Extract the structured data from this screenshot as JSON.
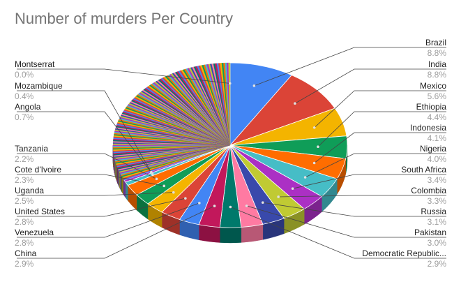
{
  "chart_data": {
    "type": "pie",
    "title": "Number of murders Per Country",
    "style": "3d",
    "legend": "labeled-slices",
    "slices": [
      {
        "name": "Brazil",
        "pct_label": "8.8%",
        "value": 8.8,
        "color": "#4285f4"
      },
      {
        "name": "India",
        "pct_label": "8.8%",
        "value": 8.8,
        "color": "#db4437"
      },
      {
        "name": "Mexico",
        "pct_label": "5.6%",
        "value": 5.6,
        "color": "#f4b400"
      },
      {
        "name": "Ethiopia",
        "pct_label": "4.4%",
        "value": 4.4,
        "color": "#0f9d58"
      },
      {
        "name": "Indonesia",
        "pct_label": "4.1%",
        "value": 4.1,
        "color": "#ff6d00"
      },
      {
        "name": "Nigeria",
        "pct_label": "4.0%",
        "value": 4.0,
        "color": "#46bdc6"
      },
      {
        "name": "South Africa",
        "pct_label": "3.4%",
        "value": 3.4,
        "color": "#ab30c4"
      },
      {
        "name": "Colombia",
        "pct_label": "3.3%",
        "value": 3.3,
        "color": "#c0ca33"
      },
      {
        "name": "Russia",
        "pct_label": "3.1%",
        "value": 3.1,
        "color": "#3949ab"
      },
      {
        "name": "Pakistan",
        "pct_label": "3.0%",
        "value": 3.0,
        "color": "#ff7aa2"
      },
      {
        "name": "Democratic Republic...",
        "pct_label": "2.9%",
        "value": 2.9,
        "color": "#00796b"
      },
      {
        "name": "China",
        "pct_label": "2.9%",
        "value": 2.9,
        "color": "#c2185b"
      },
      {
        "name": "Venezuela",
        "pct_label": "2.8%",
        "value": 2.8,
        "color": "#4285f4"
      },
      {
        "name": "United States",
        "pct_label": "2.8%",
        "value": 2.8,
        "color": "#db4437"
      },
      {
        "name": "Uganda",
        "pct_label": "2.5%",
        "value": 2.5,
        "color": "#f4b400"
      },
      {
        "name": "Cote d'Ivoire",
        "pct_label": "2.3%",
        "value": 2.3,
        "color": "#0f9d58"
      },
      {
        "name": "Tanzania",
        "pct_label": "2.2%",
        "value": 2.2,
        "color": "#ff6d00"
      },
      {
        "name": "Angola",
        "pct_label": "0.7%",
        "value": 0.7,
        "color": "#46bdc6"
      },
      {
        "name": "Mozambique",
        "pct_label": "0.4%",
        "value": 0.4,
        "color": "#ab30c4"
      },
      {
        "name": "Montserrat",
        "pct_label": "0.0%",
        "value": 0.0,
        "color": "#c0ca33"
      }
    ],
    "other_small_slices_color_cycle": [
      "#4285f4",
      "#db4437",
      "#f4b400",
      "#0f9d58",
      "#ff6d00",
      "#46bdc6",
      "#ab30c4",
      "#c0ca33",
      "#3949ab",
      "#ff7aa2",
      "#00796b",
      "#c2185b"
    ]
  }
}
